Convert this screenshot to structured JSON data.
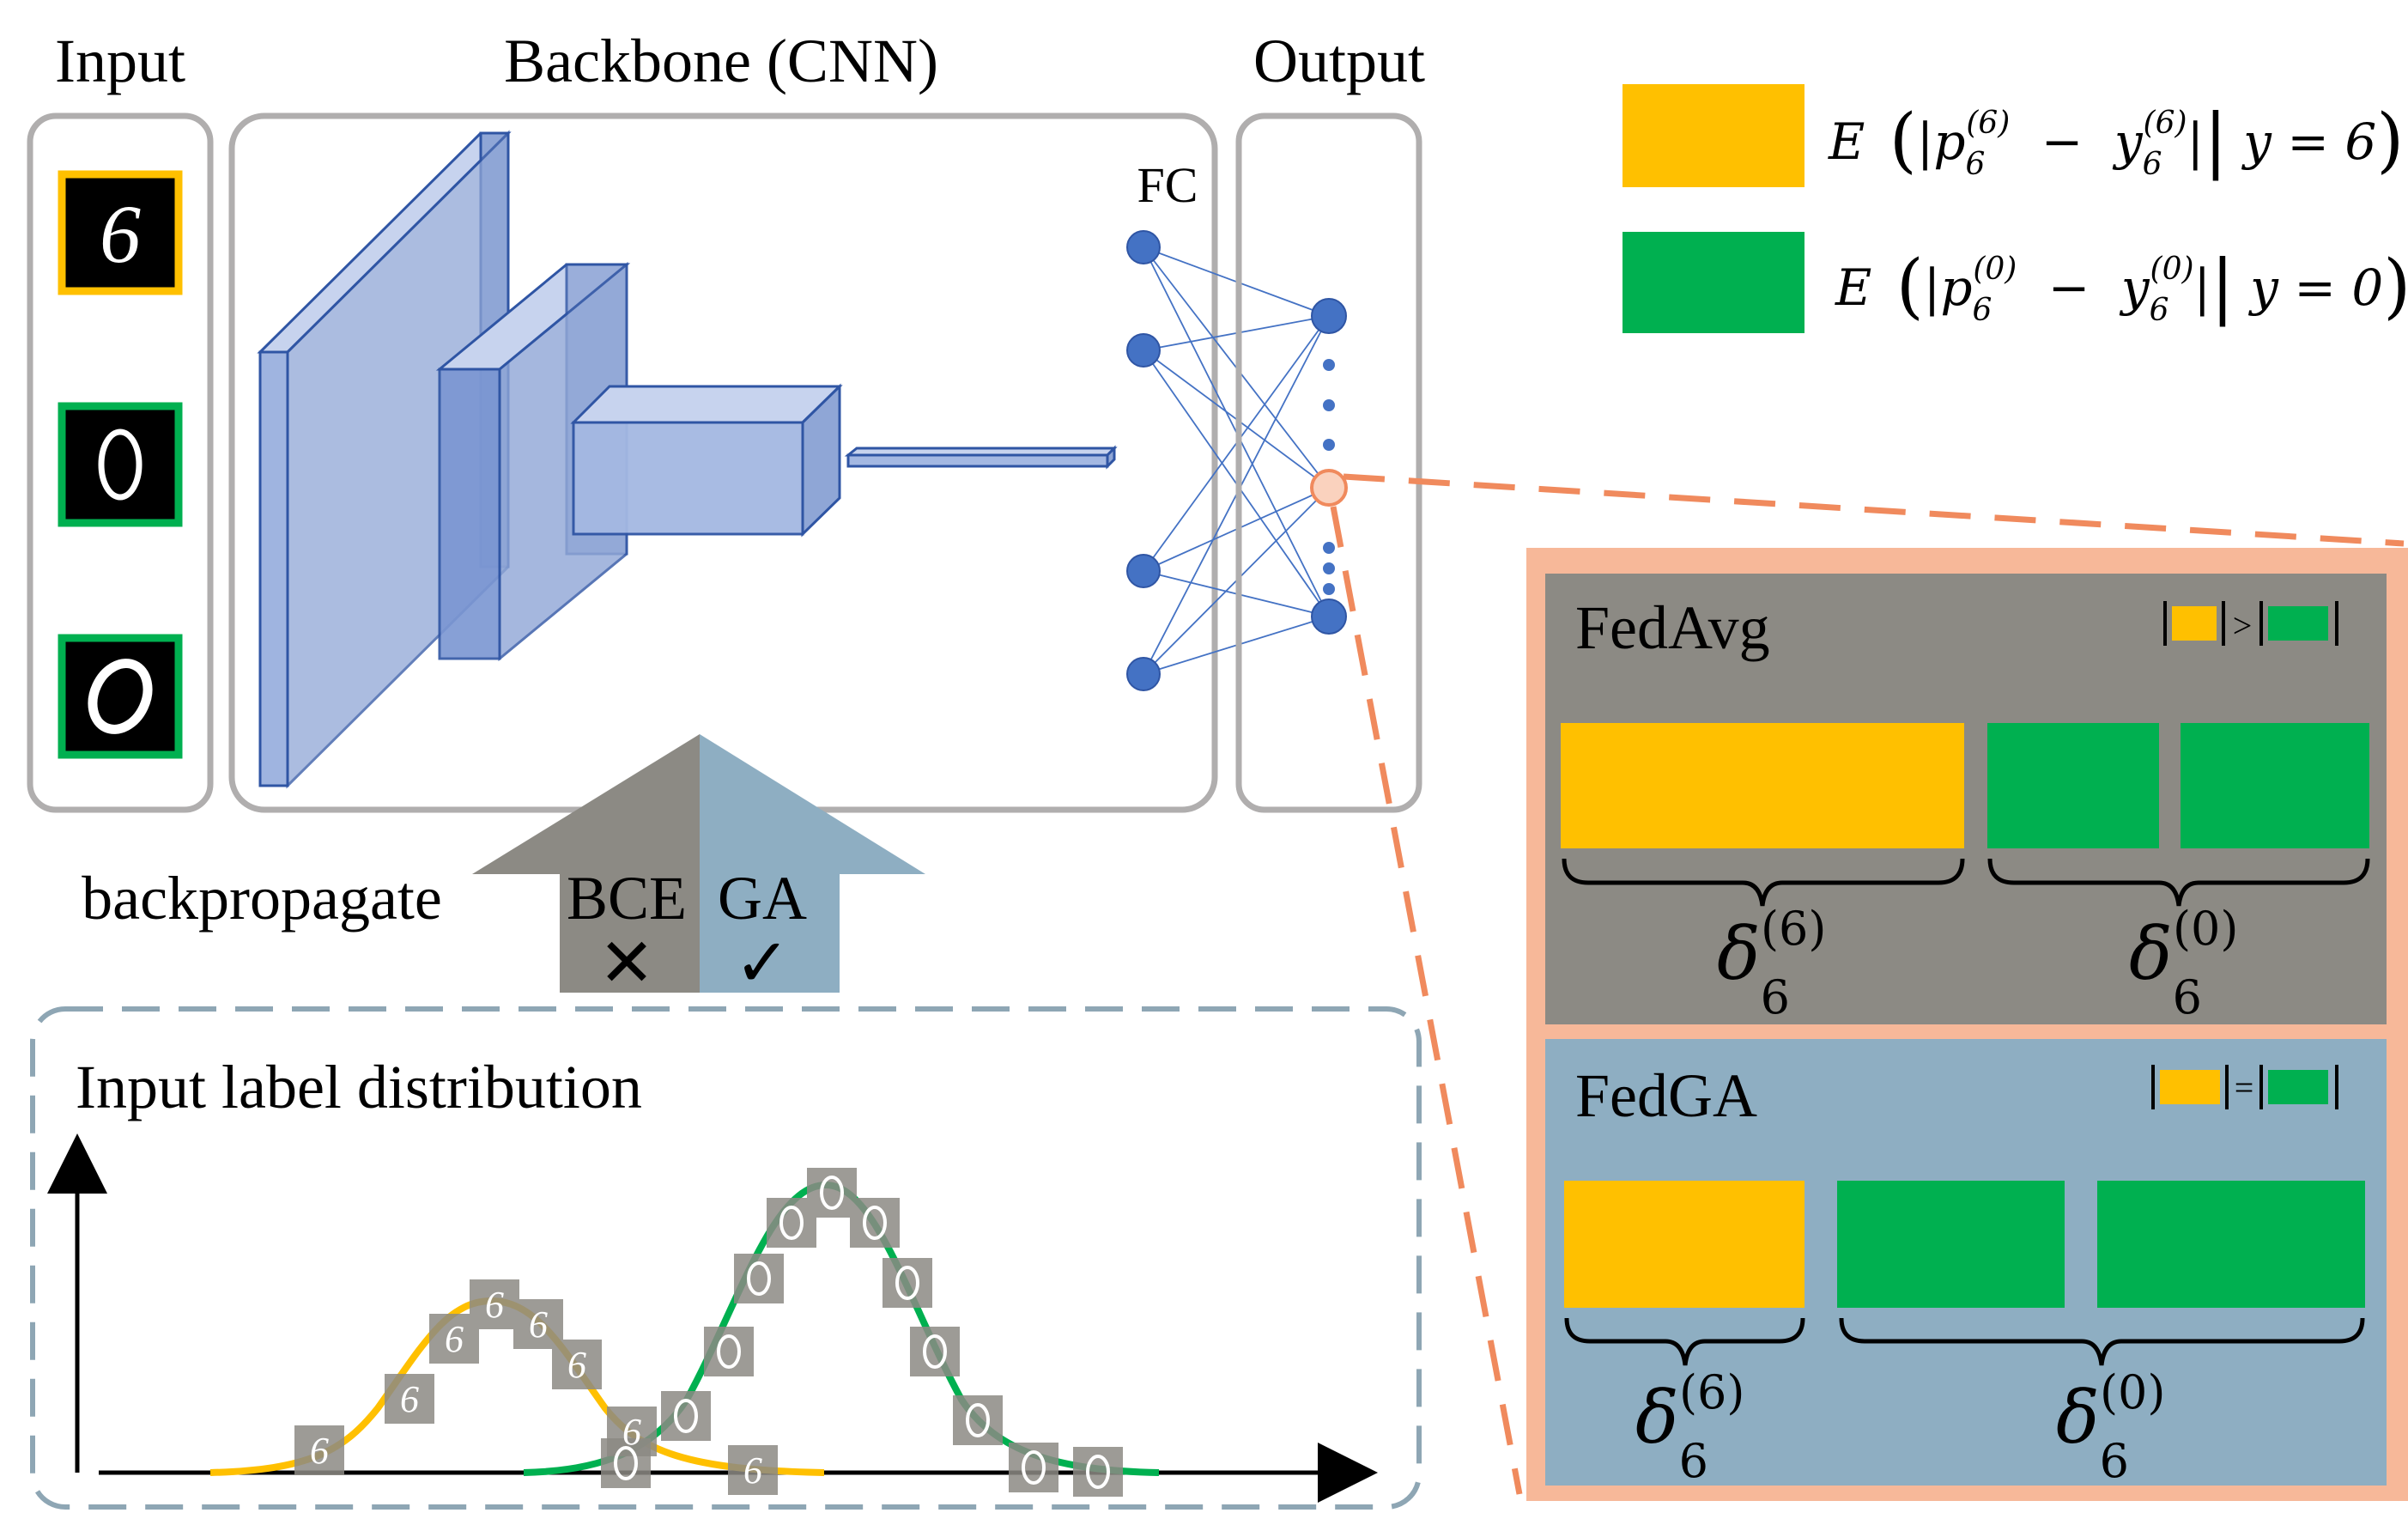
{
  "labels": {
    "input": "Input",
    "backbone": "Backbone (CNN)",
    "output": "Output",
    "fc": "FC",
    "backpropagate": "backpropagate",
    "bce": "BCE",
    "ga": "GA",
    "distribution_title": "Input label distribution"
  },
  "legend": {
    "yellow_expr_prefix": "E",
    "yellow_expr_body": "|p",
    "yellow_sub": "6",
    "yellow_sup": "(6)",
    "yellow_minus": "−",
    "yellow_y": "y",
    "yellow_ysub": "6",
    "yellow_ysup": "(6)",
    "yellow_cond": "y = 6",
    "green_expr_prefix": "E",
    "green_expr_body": "|p",
    "green_sub": "6",
    "green_sup": "(0)",
    "green_minus": "−",
    "green_y": "y",
    "green_ysub": "6",
    "green_ysup": "(0)",
    "green_cond": "y = 0"
  },
  "panels": {
    "fedavg": {
      "title": "FedAvg",
      "compare": ">",
      "delta_left": "δ",
      "delta_left_sub": "6",
      "delta_left_sup": "(6)",
      "delta_right": "δ",
      "delta_right_sub": "6",
      "delta_right_sup": "(0)"
    },
    "fedga": {
      "title": "FedGA",
      "compare": "=",
      "delta_left": "δ",
      "delta_left_sub": "6",
      "delta_left_sup": "(6)",
      "delta_right": "δ",
      "delta_right_sub": "6",
      "delta_right_sup": "(0)"
    }
  },
  "digits": {
    "six": "6",
    "zero": "0"
  },
  "symbols": {
    "cross": "✕",
    "check": "✓"
  },
  "colors": {
    "yellow": "#FFC000",
    "green": "#00B050",
    "orange": "#F4A582",
    "orange_line": "#F08A5D",
    "gray_panel": "#8C8A84",
    "blue_panel": "#8EAEC2",
    "cnn_face": "#9FB4E0",
    "cnn_edge": "#2F55A4",
    "node": "#4472C4"
  }
}
